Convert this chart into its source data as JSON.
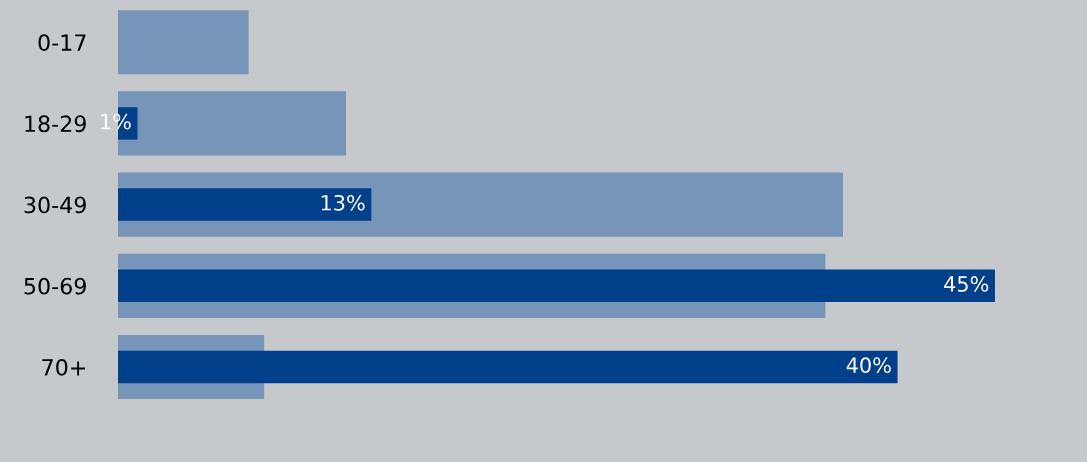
{
  "chart_data": {
    "type": "bar",
    "orientation": "horizontal",
    "categories": [
      "0-17",
      "18-29",
      "30-49",
      "50-69",
      "70+"
    ],
    "series": [
      {
        "color": "#7795b8",
        "values": [
          6.7,
          11.7,
          37.2,
          36.3,
          7.5
        ]
      },
      {
        "color": "#003f8a",
        "values": [
          null,
          1,
          13,
          45,
          40
        ],
        "value_labels": [
          null,
          "1%",
          "13%",
          "45%",
          "40%"
        ]
      }
    ],
    "xlim": [
      0,
      49.5
    ],
    "tick_labels": "y",
    "grid": false,
    "legend": false
  }
}
